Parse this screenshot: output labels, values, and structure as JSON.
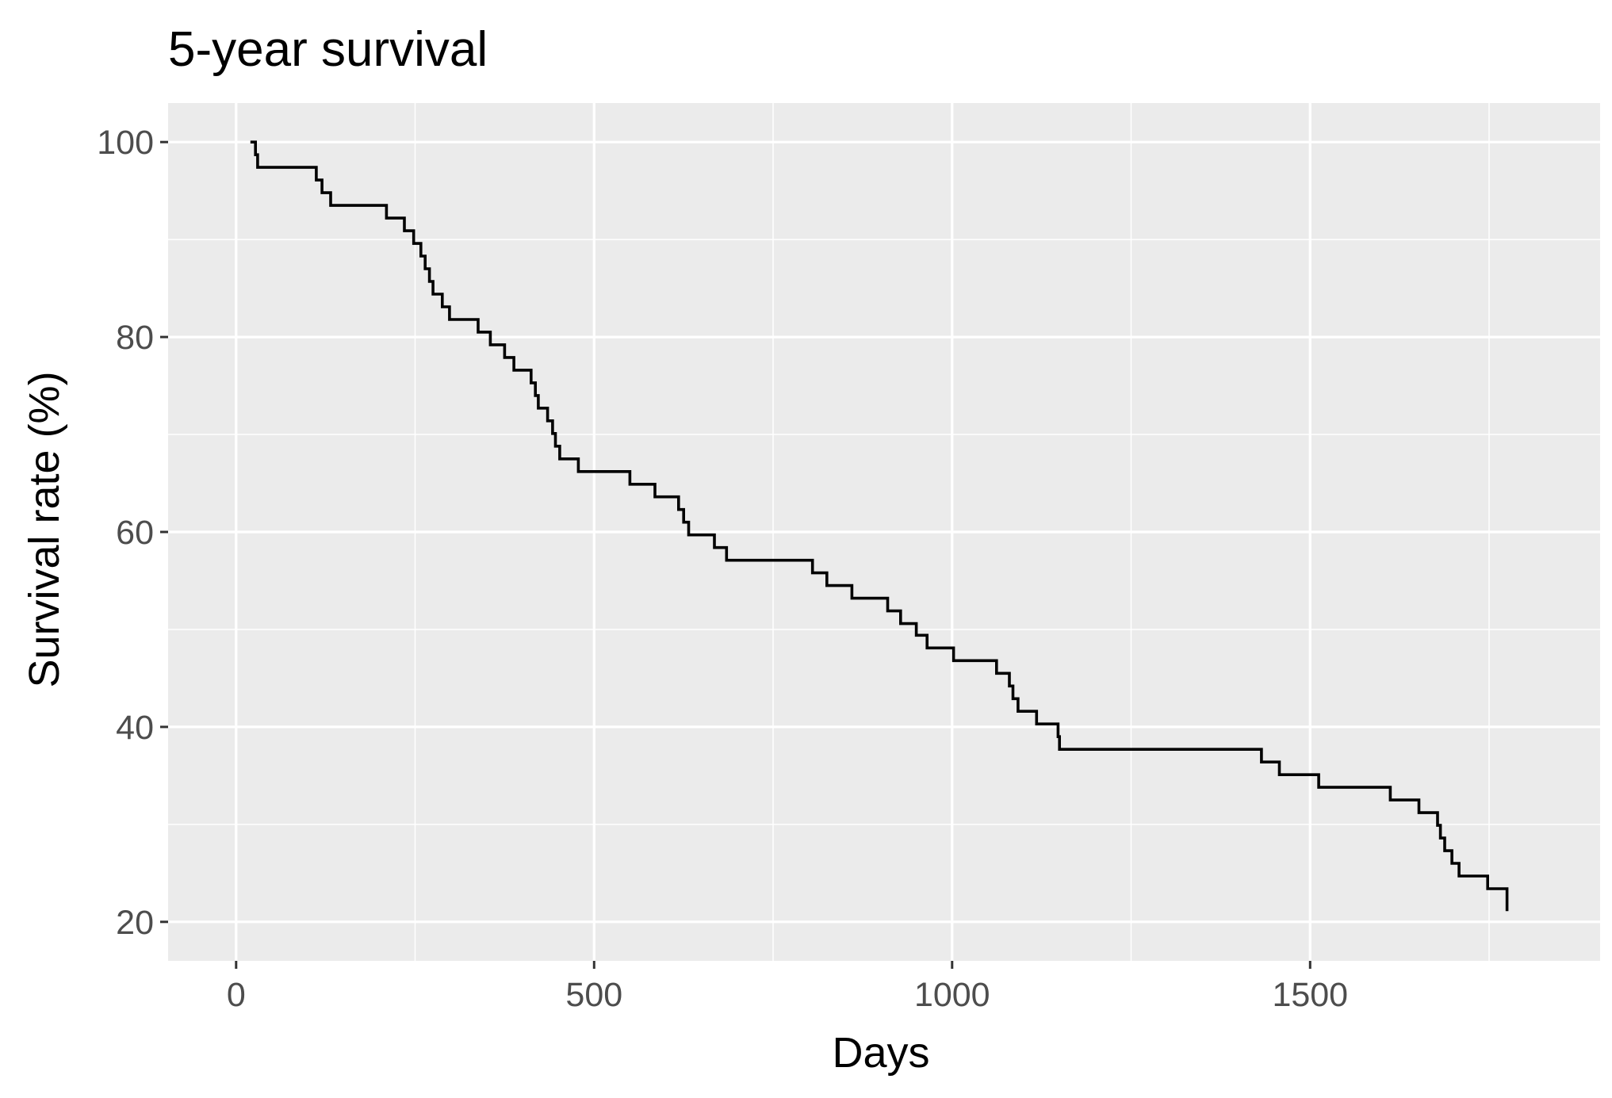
{
  "chart_data": {
    "type": "line",
    "step": "post",
    "title": "5-year survival",
    "xlabel": "Days",
    "ylabel": "Survival rate (%)",
    "xlim": [
      -95,
      1905
    ],
    "ylim": [
      16,
      104
    ],
    "xticks": [
      0,
      500,
      1000,
      1500
    ],
    "yticks": [
      20,
      40,
      60,
      80,
      100
    ],
    "grid": true,
    "legend": "none",
    "colors": {
      "panel": "#EBEBEB",
      "grid": "#FFFFFF",
      "line": "#000000",
      "text": "#000000",
      "tick_text": "#4D4D4D"
    },
    "series": [
      {
        "points": [
          [
            20,
            100.0
          ],
          [
            27,
            98.7
          ],
          [
            30,
            97.4
          ],
          [
            112,
            96.1
          ],
          [
            120,
            94.8
          ],
          [
            132,
            93.5
          ],
          [
            210,
            92.2
          ],
          [
            235,
            90.9
          ],
          [
            248,
            89.6
          ],
          [
            258,
            88.3
          ],
          [
            264,
            87.0
          ],
          [
            270,
            85.7
          ],
          [
            275,
            84.4
          ],
          [
            288,
            83.1
          ],
          [
            298,
            81.8
          ],
          [
            338,
            80.5
          ],
          [
            355,
            79.2
          ],
          [
            375,
            77.9
          ],
          [
            388,
            76.6
          ],
          [
            412,
            75.3
          ],
          [
            418,
            74.0
          ],
          [
            422,
            72.7
          ],
          [
            435,
            71.4
          ],
          [
            442,
            70.1
          ],
          [
            446,
            68.8
          ],
          [
            452,
            67.5
          ],
          [
            478,
            66.2
          ],
          [
            550,
            64.9
          ],
          [
            585,
            63.6
          ],
          [
            618,
            62.3
          ],
          [
            625,
            61.0
          ],
          [
            632,
            59.7
          ],
          [
            668,
            58.4
          ],
          [
            685,
            57.1
          ],
          [
            805,
            55.8
          ],
          [
            825,
            54.5
          ],
          [
            860,
            53.2
          ],
          [
            910,
            51.9
          ],
          [
            928,
            50.6
          ],
          [
            950,
            49.4
          ],
          [
            965,
            48.1
          ],
          [
            1002,
            46.8
          ],
          [
            1062,
            45.5
          ],
          [
            1080,
            44.2
          ],
          [
            1085,
            42.9
          ],
          [
            1092,
            41.6
          ],
          [
            1118,
            40.3
          ],
          [
            1148,
            39.0
          ],
          [
            1150,
            37.7
          ],
          [
            1432,
            36.4
          ],
          [
            1457,
            35.1
          ],
          [
            1512,
            33.8
          ],
          [
            1612,
            32.5
          ],
          [
            1652,
            31.2
          ],
          [
            1678,
            29.9
          ],
          [
            1682,
            28.6
          ],
          [
            1688,
            27.3
          ],
          [
            1698,
            26.0
          ],
          [
            1708,
            24.7
          ],
          [
            1748,
            23.4
          ],
          [
            1775,
            22.1
          ]
        ],
        "end_x": 1775
      }
    ]
  }
}
